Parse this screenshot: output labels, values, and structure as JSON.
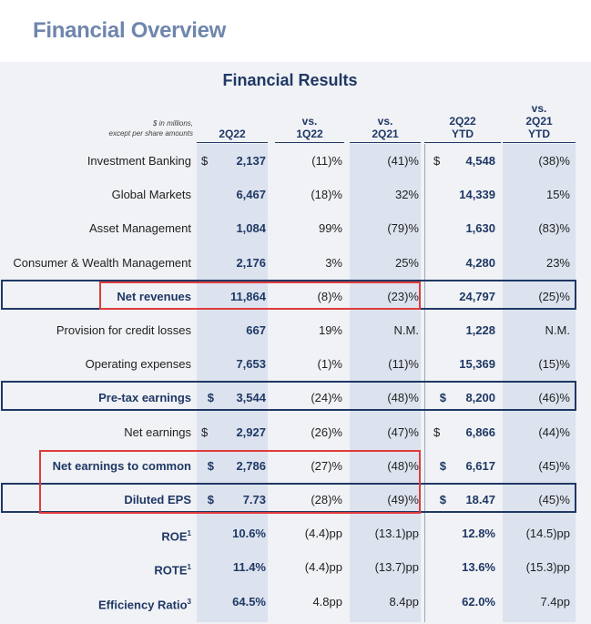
{
  "page": {
    "title": "Financial Overview"
  },
  "table": {
    "title": "Financial Results",
    "units_note_line1": "$ in millions,",
    "units_note_line2": "except per share amounts",
    "columns": [
      {
        "line1": "",
        "line2": "2Q22"
      },
      {
        "line1": "vs.",
        "line2": "1Q22"
      },
      {
        "line1": "vs.",
        "line2": "2Q21"
      },
      {
        "line1": "2Q22",
        "line2": "YTD"
      },
      {
        "line1": "vs.",
        "line2": "2Q21",
        "line3": "YTD"
      }
    ],
    "rows": [
      {
        "label": "Investment Banking",
        "d1": "$",
        "q": "2,137",
        "vq": "(11)%",
        "vy": "(41)%",
        "d2": "$",
        "ytd": "4,548",
        "vytd": "(38)%"
      },
      {
        "label": "Global Markets",
        "d1": "",
        "q": "6,467",
        "vq": "(18)%",
        "vy": "32%",
        "d2": "",
        "ytd": "14,339",
        "vytd": "15%"
      },
      {
        "label": "Asset Management",
        "d1": "",
        "q": "1,084",
        "vq": "99%",
        "vy": "(79)%",
        "d2": "",
        "ytd": "1,630",
        "vytd": "(83)%"
      },
      {
        "label": "Consumer & Wealth Management",
        "d1": "",
        "q": "2,176",
        "vq": "3%",
        "vy": "25%",
        "d2": "",
        "ytd": "4,280",
        "vytd": "23%"
      },
      {
        "label": "Net revenues",
        "d1": "",
        "q": "11,864",
        "vq": "(8)%",
        "vy": "(23)%",
        "d2": "",
        "ytd": "24,797",
        "vytd": "(25)%"
      },
      {
        "label": "Provision for credit losses",
        "d1": "",
        "q": "667",
        "vq": "19%",
        "vy": "N.M.",
        "d2": "",
        "ytd": "1,228",
        "vytd": "N.M."
      },
      {
        "label": "Operating expenses",
        "d1": "",
        "q": "7,653",
        "vq": "(1)%",
        "vy": "(11)%",
        "d2": "",
        "ytd": "15,369",
        "vytd": "(15)%"
      },
      {
        "label": "Pre-tax earnings",
        "d1": "$",
        "q": "3,544",
        "vq": "(24)%",
        "vy": "(48)%",
        "d2": "$",
        "ytd": "8,200",
        "vytd": "(46)%"
      },
      {
        "label": "Net earnings",
        "d1": "$",
        "q": "2,927",
        "vq": "(26)%",
        "vy": "(47)%",
        "d2": "$",
        "ytd": "6,866",
        "vytd": "(44)%"
      },
      {
        "label": "Net earnings to common",
        "d1": "$",
        "q": "2,786",
        "vq": "(27)%",
        "vy": "(48)%",
        "d2": "$",
        "ytd": "6,617",
        "vytd": "(45)%"
      },
      {
        "label": "Diluted EPS",
        "d1": "$",
        "q": "7.73",
        "vq": "(28)%",
        "vy": "(49)%",
        "d2": "$",
        "ytd": "18.47",
        "vytd": "(45)%"
      },
      {
        "label": "ROE",
        "sup": "1",
        "d1": "",
        "q": "10.6%",
        "vq": "(4.4)pp",
        "vy": "(13.1)pp",
        "d2": "",
        "ytd": "12.8%",
        "vytd": "(14.5)pp"
      },
      {
        "label": "ROTE",
        "sup": "1",
        "d1": "",
        "q": "11.4%",
        "vq": "(4.4)pp",
        "vy": "(13.7)pp",
        "d2": "",
        "ytd": "13.6%",
        "vytd": "(15.3)pp"
      },
      {
        "label": "Efficiency Ratio",
        "sup": "3",
        "d1": "",
        "q": "64.5%",
        "vq": "4.8pp",
        "vy": "8.4pp",
        "d2": "",
        "ytd": "62.0%",
        "vytd": "7.4pp"
      }
    ]
  },
  "colors": {
    "title": "#6f86ad",
    "navy": "#1f3864",
    "highlight_red": "#e03b3b",
    "band": "#dce3ef",
    "panel": "#f0f2f6"
  }
}
